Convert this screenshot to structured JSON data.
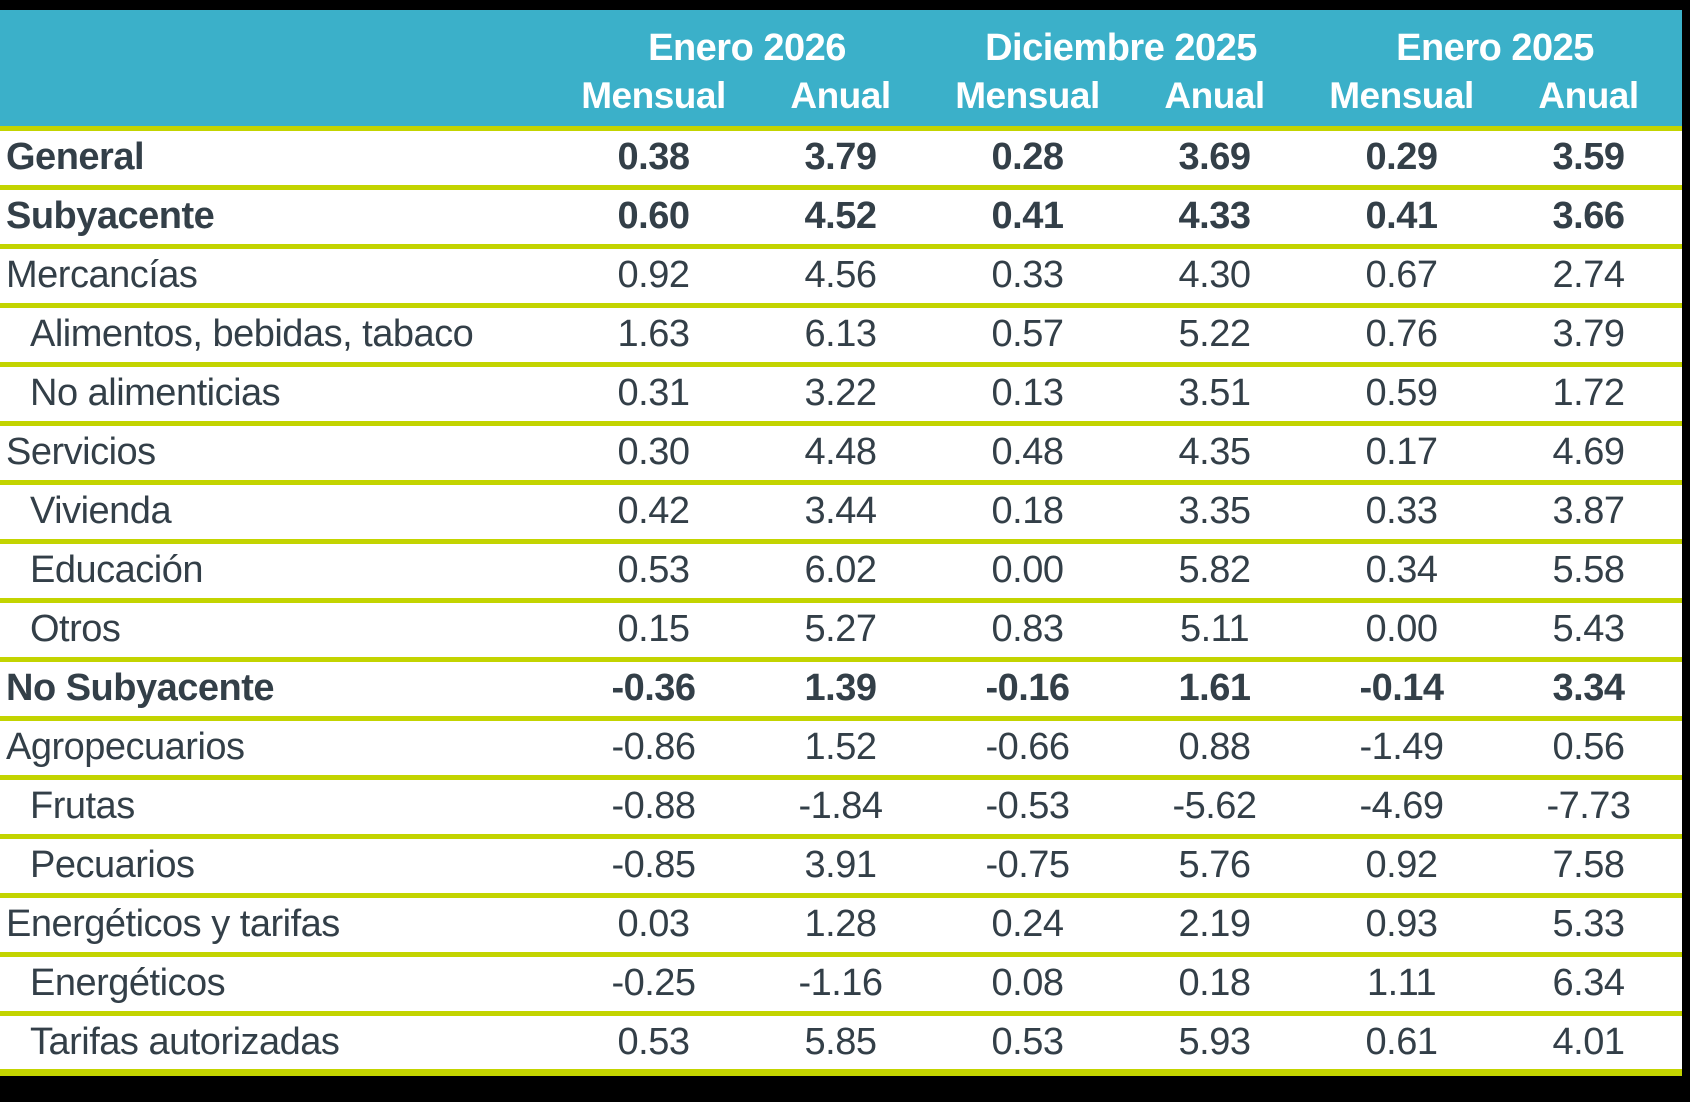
{
  "chart_data": {
    "type": "table",
    "column_groups": [
      "Enero 2026",
      "Diciembre 2025",
      "Enero 2025"
    ],
    "subcolumns": [
      "Mensual",
      "Anual"
    ],
    "rows": [
      {
        "label": "General",
        "bold": true,
        "indent": false,
        "values": [
          "0.38",
          "3.79",
          "0.28",
          "3.69",
          "0.29",
          "3.59"
        ]
      },
      {
        "label": "Subyacente",
        "bold": true,
        "indent": false,
        "values": [
          "0.60",
          "4.52",
          "0.41",
          "4.33",
          "0.41",
          "3.66"
        ]
      },
      {
        "label": "Mercancías",
        "bold": false,
        "indent": false,
        "values": [
          "0.92",
          "4.56",
          "0.33",
          "4.30",
          "0.67",
          "2.74"
        ]
      },
      {
        "label": "Alimentos, bebidas, tabaco",
        "bold": false,
        "indent": true,
        "values": [
          "1.63",
          "6.13",
          "0.57",
          "5.22",
          "0.76",
          "3.79"
        ]
      },
      {
        "label": "No alimenticias",
        "bold": false,
        "indent": true,
        "values": [
          "0.31",
          "3.22",
          "0.13",
          "3.51",
          "0.59",
          "1.72"
        ]
      },
      {
        "label": "Servicios",
        "bold": false,
        "indent": false,
        "values": [
          "0.30",
          "4.48",
          "0.48",
          "4.35",
          "0.17",
          "4.69"
        ]
      },
      {
        "label": "Vivienda",
        "bold": false,
        "indent": true,
        "values": [
          "0.42",
          "3.44",
          "0.18",
          "3.35",
          "0.33",
          "3.87"
        ]
      },
      {
        "label": "Educación",
        "bold": false,
        "indent": true,
        "values": [
          "0.53",
          "6.02",
          "0.00",
          "5.82",
          "0.34",
          "5.58"
        ]
      },
      {
        "label": "Otros",
        "bold": false,
        "indent": true,
        "values": [
          "0.15",
          "5.27",
          "0.83",
          "5.11",
          "0.00",
          "5.43"
        ]
      },
      {
        "label": "No Subyacente",
        "bold": true,
        "indent": false,
        "values": [
          "-0.36",
          "1.39",
          "-0.16",
          "1.61",
          "-0.14",
          "3.34"
        ]
      },
      {
        "label": "Agropecuarios",
        "bold": false,
        "indent": false,
        "values": [
          "-0.86",
          "1.52",
          "-0.66",
          "0.88",
          "-1.49",
          "0.56"
        ]
      },
      {
        "label": "Frutas",
        "bold": false,
        "indent": true,
        "values": [
          "-0.88",
          "-1.84",
          "-0.53",
          "-5.62",
          "-4.69",
          "-7.73"
        ]
      },
      {
        "label": "Pecuarios",
        "bold": false,
        "indent": true,
        "values": [
          "-0.85",
          "3.91",
          "-0.75",
          "5.76",
          "0.92",
          "7.58"
        ]
      },
      {
        "label": "Energéticos y tarifas",
        "bold": false,
        "indent": false,
        "values": [
          "0.03",
          "1.28",
          "0.24",
          "2.19",
          "0.93",
          "5.33"
        ]
      },
      {
        "label": "Energéticos",
        "bold": false,
        "indent": true,
        "values": [
          "-0.25",
          "-1.16",
          "0.08",
          "0.18",
          "1.11",
          "6.34"
        ]
      },
      {
        "label": "Tarifas autorizadas",
        "bold": false,
        "indent": true,
        "values": [
          "0.53",
          "5.85",
          "0.53",
          "5.93",
          "0.61",
          "4.01"
        ]
      }
    ]
  },
  "colors": {
    "header_bg": "#3BB0C9",
    "row_line": "#C3D400",
    "text": "#333F48",
    "frame": "#000000"
  }
}
